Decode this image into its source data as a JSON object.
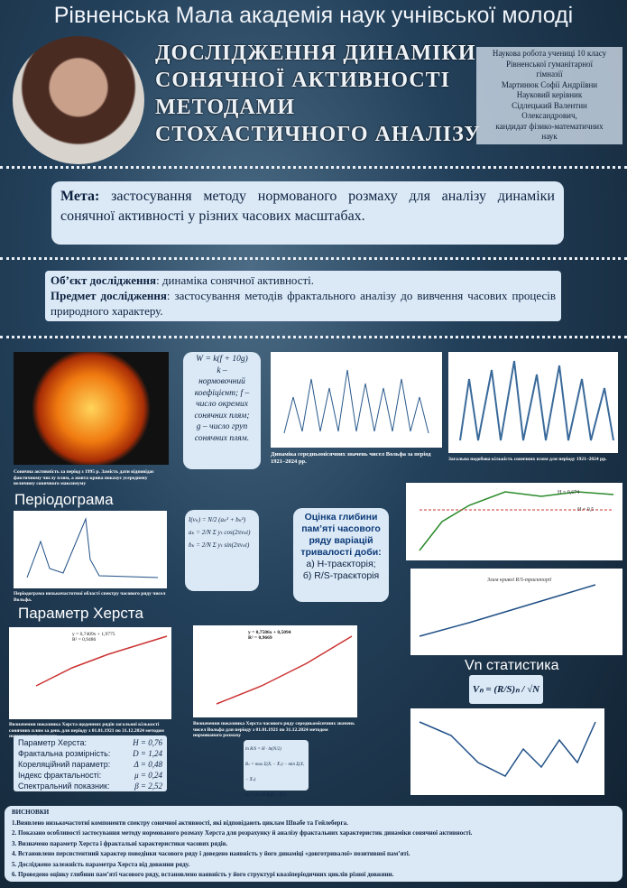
{
  "header": {
    "academy": "Рівненська Мала академія наук учнівської молоді",
    "title_lines": [
      "ДОСЛІДЖЕННЯ ДИНАМІКИ",
      "СОНЯЧНОЇ АКТИВНОСТІ",
      "МЕТОДАМИ",
      "СТОХАСТИЧНОГО АНАЛІЗУ"
    ],
    "author_lines": [
      "Наукова робота учениці 10 класу",
      "Рівненської гуманітарної",
      "гімназії",
      "Мартинюк Софії Андріївни",
      "Науковий керівник",
      "Сідлецький Валентин",
      "Олександрович,",
      "кандидат фізико-математичних",
      "наук"
    ]
  },
  "goal": {
    "label": "Мета:",
    "text": "застосування методу нормованого розмаху для аналізу динаміки сонячної активності у різних часових масштабах."
  },
  "object": {
    "label": "Об’єкт дослідження",
    "text": ": динаміка сонячної активності."
  },
  "subject": {
    "label": "Предмет дослідження",
    "text": ": застосування методів фрактального аналізу до вивчення часових процесів природного характеру."
  },
  "wolf_formula": {
    "lines": [
      "W = k(f + 10g)",
      "k –",
      "нормовочний",
      "коефіцієнт; f –",
      "число окремих",
      "сонячних плям;",
      "g – число груп",
      "сонячних плям."
    ]
  },
  "captions": {
    "sun": "Сонячна активність за період з 1995 р. Замість дати відповідає фактичному числу плям, а жовта крива показує усереднену величину сонячного максимуму",
    "monthly": "Динаміка середньомісячних значень чисел Вольфа за період 1921–2024 рр.",
    "daily": "Загальна подобова кількість сонячних плям для періоду 1921–2024 рр.",
    "periodogram": "Періодограма низькочастотної області спектру часового ряду чисел Вольфа.",
    "hurst_daily": "Визначення показника Херста щоденних рядів загальної кількості сонячних плям за день для періоду з 01.01.1921 по 31.12.2024 методом нормованого розмаху",
    "hurst_monthly": "Визначення показника Херста часового ряду середньомісячних значень чисел Вольфа для періоду з 01.01.1921 по 31.12.2024 методом нормованого розмаху"
  },
  "periodogram": {
    "heading": "Періодограма",
    "formulas": [
      "I(νₖ) = N/2 (aₖ² + bₖ²)",
      "aₖ = 2/N Σ yₜ cos(2πνₖt)",
      "bₖ = 2/N Σ yₜ sin(2πνₖt)"
    ]
  },
  "question": {
    "lines": [
      "Оцінка глибини",
      "пам’яті часового",
      "ряду варіацій",
      "тривалості доби:"
    ],
    "items": [
      "а) H-траєкторія;",
      "б) R/S-траєкторія"
    ]
  },
  "hurst": {
    "heading": "Параметр Херста",
    "eq_daily": [
      "y = 0,7409x + 1,9775",
      "R² = 0,9486"
    ],
    "eq_monthly": [
      "y = 0,7586x + 0,5094",
      "R² = 0,9669"
    ],
    "rs_formulas": [
      "ln R/S = H · ln(N/2)",
      "Rₙ = max Σ(Xᵢ − X̄ₙ) − min Σ(Xᵢ − X̄ₙ)",
      "Sₙ = √(1/N Σ(Xᵢ − X̄)²)"
    ]
  },
  "vn": {
    "heading": "Vn статистика",
    "formula": "Vₙ = (R/S)ₙ / √N"
  },
  "params": {
    "rows": [
      [
        "Параметр Херста:",
        "H = 0,76"
      ],
      [
        "Фрактальна розмірність:",
        "D = 1,24"
      ],
      [
        "Кореляційний параметр:",
        "Δ = 0,48"
      ],
      [
        "Індекс фрактальності:",
        "μ = 0,24"
      ],
      [
        "Спектральний показник:",
        "β = 2,52"
      ]
    ]
  },
  "charts": {
    "h_label": "H = 0,674",
    "h_half": "H = 0,5",
    "rs_break": "Злам кривої R/S-траєкторії"
  },
  "conclusions": {
    "title": "ВИСНОВКИ",
    "items": [
      "1.Виявлено низькочастотні компоненти спектру сонячної активності, які відповідають циклам Швабе та Гейлеберга.",
      "2. Показано особливості застосування методу нормованого розмаху Херста для розрахунку й аналізу фрактальних характеристик динаміки сонячної активності.",
      "3. Визначено параметр Херста і фрактальні характеристики часових рядів.",
      "4. Встановлено персистентний характер поведінки часового ряду і доведено наявність у його динаміці «довготривалої» позитивної пам’яті.",
      "5. Досліджено залежність параметра Херста від довжини ряду.",
      "6. Проведено оцінку глибини пам’яті часового ряду, встановлено наявність у його структурі квазіперіодичних циклів різної довжини."
    ]
  }
}
